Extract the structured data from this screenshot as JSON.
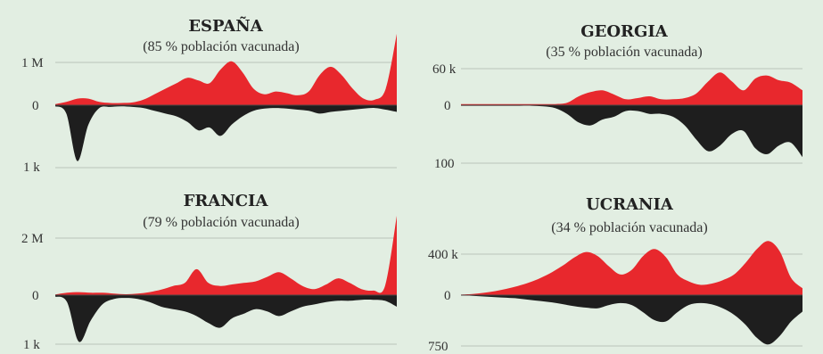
{
  "chart_data": [
    {
      "type": "area",
      "title": "ESPAÑA",
      "subtitle": "(85 % población vacunada)",
      "tick_top": "1 M",
      "tick_zero": "0",
      "tick_bottom": "1 k",
      "top_max": 1.3,
      "bottom_max": 1.15,
      "series": [
        {
          "name": "",
          "color": "#e8282d",
          "values": [
            0.02,
            0.06,
            0.12,
            0.12,
            0.06,
            0.04,
            0.04,
            0.05,
            0.1,
            0.2,
            0.3,
            0.4,
            0.5,
            0.45,
            0.4,
            0.65,
            0.8,
            0.6,
            0.3,
            0.2,
            0.25,
            0.22,
            0.18,
            0.25,
            0.55,
            0.7,
            0.55,
            0.3,
            0.12,
            0.1,
            0.3,
            1.3
          ]
        },
        {
          "name": "",
          "color": "#1e1e1e",
          "values": [
            0.02,
            0.15,
            1.0,
            0.35,
            0.05,
            0.03,
            0.02,
            0.03,
            0.05,
            0.1,
            0.15,
            0.2,
            0.3,
            0.45,
            0.4,
            0.55,
            0.35,
            0.2,
            0.1,
            0.06,
            0.05,
            0.06,
            0.08,
            0.1,
            0.15,
            0.12,
            0.1,
            0.08,
            0.06,
            0.05,
            0.08,
            0.12
          ]
        }
      ]
    },
    {
      "type": "area",
      "title": "GEORGIA",
      "subtitle": "(35 % población vacunada)",
      "tick_top": "60 k",
      "tick_zero": "0",
      "tick_bottom": "100",
      "top_max": 66,
      "bottom_max": 110,
      "series": [
        {
          "name": "",
          "color": "#e8282d",
          "values": [
            2,
            2,
            2,
            2,
            2,
            2,
            2,
            2,
            2,
            4,
            15,
            22,
            25,
            18,
            10,
            12,
            15,
            10,
            10,
            12,
            20,
            40,
            55,
            40,
            25,
            45,
            50,
            42,
            38,
            25
          ]
        },
        {
          "name": "",
          "color": "#1e1e1e",
          "values": [
            1,
            1,
            1,
            1,
            1,
            1,
            1,
            2,
            5,
            15,
            30,
            35,
            25,
            20,
            10,
            10,
            15,
            15,
            20,
            35,
            60,
            80,
            70,
            50,
            45,
            75,
            85,
            70,
            65,
            90
          ]
        }
      ]
    },
    {
      "type": "area",
      "title": "FRANCIA",
      "subtitle": "(79 % población vacunada)",
      "tick_top": "2 M",
      "tick_zero": "0",
      "tick_bottom": "1 k",
      "top_max": 2.6,
      "bottom_max": 1.15,
      "series": [
        {
          "name": "",
          "color": "#e8282d",
          "values": [
            0.02,
            0.08,
            0.1,
            0.08,
            0.08,
            0.05,
            0.03,
            0.05,
            0.1,
            0.18,
            0.3,
            0.4,
            0.85,
            0.4,
            0.3,
            0.35,
            0.4,
            0.45,
            0.6,
            0.75,
            0.55,
            0.3,
            0.2,
            0.35,
            0.55,
            0.4,
            0.2,
            0.15,
            0.3,
            2.6
          ]
        },
        {
          "name": "",
          "color": "#1e1e1e",
          "values": [
            0.03,
            0.15,
            1.0,
            0.55,
            0.2,
            0.08,
            0.06,
            0.08,
            0.15,
            0.25,
            0.3,
            0.35,
            0.45,
            0.6,
            0.7,
            0.5,
            0.4,
            0.3,
            0.35,
            0.45,
            0.35,
            0.25,
            0.2,
            0.15,
            0.12,
            0.12,
            0.1,
            0.1,
            0.12,
            0.25
          ]
        }
      ]
    },
    {
      "type": "area",
      "title": "UCRANIA",
      "subtitle": "(34 % población vacunada)",
      "tick_top": "400 k",
      "tick_zero": "0",
      "tick_bottom": "750",
      "top_max": 480,
      "bottom_max": 800,
      "series": [
        {
          "name": "",
          "color": "#e8282d",
          "values": [
            5,
            10,
            20,
            35,
            55,
            80,
            110,
            150,
            200,
            260,
            330,
            375,
            340,
            250,
            180,
            220,
            340,
            400,
            330,
            180,
            120,
            90,
            100,
            130,
            180,
            280,
            400,
            470,
            380,
            150,
            60
          ]
        },
        {
          "name": "",
          "color": "#1e1e1e",
          "values": [
            5,
            10,
            20,
            30,
            40,
            50,
            70,
            90,
            110,
            140,
            170,
            190,
            200,
            150,
            120,
            150,
            260,
            380,
            400,
            260,
            150,
            120,
            140,
            200,
            300,
            450,
            650,
            750,
            620,
            400,
            250
          ]
        }
      ]
    }
  ]
}
